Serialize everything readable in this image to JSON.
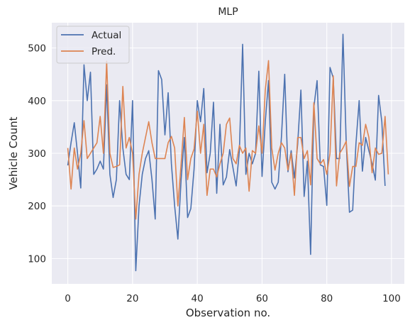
{
  "chart_data": {
    "type": "line",
    "title": "MLP",
    "xlabel": "Observation no.",
    "ylabel": "Vehicle Count",
    "xlim": [
      -4.95,
      103.95
    ],
    "ylim": [
      52,
      548
    ],
    "xticks": [
      0,
      20,
      40,
      60,
      80,
      100
    ],
    "yticks": [
      100,
      200,
      300,
      400,
      500
    ],
    "grid": true,
    "legend_position": "top-left",
    "x": [
      0,
      1,
      2,
      3,
      4,
      5,
      6,
      7,
      8,
      9,
      10,
      11,
      12,
      13,
      14,
      15,
      16,
      17,
      18,
      19,
      20,
      21,
      22,
      23,
      24,
      25,
      26,
      27,
      28,
      29,
      30,
      31,
      32,
      33,
      34,
      35,
      36,
      37,
      38,
      39,
      40,
      41,
      42,
      43,
      44,
      45,
      46,
      47,
      48,
      49,
      50,
      51,
      52,
      53,
      54,
      55,
      56,
      57,
      58,
      59,
      60,
      61,
      62,
      63,
      64,
      65,
      66,
      67,
      68,
      69,
      70,
      71,
      72,
      73,
      74,
      75,
      76,
      77,
      78,
      79,
      80,
      81,
      82,
      83,
      84,
      85,
      86,
      87,
      88,
      89,
      90,
      91,
      92,
      93,
      94,
      95,
      96,
      97,
      98,
      99
    ],
    "series": [
      {
        "name": "Actual",
        "color": "#4c72b0",
        "values": [
          277,
          320,
          358,
          300,
          234,
          468,
          400,
          454,
          260,
          270,
          285,
          270,
          430,
          260,
          216,
          250,
          400,
          310,
          260,
          250,
          400,
          77,
          200,
          260,
          290,
          305,
          250,
          175,
          457,
          440,
          335,
          415,
          280,
          200,
          137,
          250,
          330,
          178,
          195,
          270,
          400,
          360,
          423,
          263,
          300,
          397,
          224,
          355,
          240,
          255,
          307,
          273,
          238,
          305,
          507,
          260,
          300,
          280,
          300,
          456,
          256,
          360,
          438,
          245,
          232,
          245,
          332,
          450,
          265,
          305,
          253,
          317,
          420,
          218,
          285,
          108,
          387,
          438,
          278,
          275,
          201,
          463,
          443,
          290,
          290,
          526,
          320,
          188,
          192,
          318,
          400,
          266,
          330,
          305,
          280,
          249,
          410,
          360,
          238,
          null
        ]
      },
      {
        "name": "Pred.",
        "color": "#dd8452",
        "values": [
          310,
          232,
          310,
          270,
          300,
          362,
          290,
          300,
          310,
          320,
          370,
          300,
          475,
          300,
          273,
          275,
          278,
          427,
          310,
          330,
          300,
          175,
          260,
          300,
          330,
          360,
          320,
          290,
          290,
          290,
          290,
          320,
          332,
          310,
          200,
          280,
          368,
          250,
          290,
          308,
          380,
          300,
          355,
          220,
          270,
          270,
          255,
          280,
          300,
          355,
          367,
          290,
          280,
          315,
          300,
          310,
          228,
          305,
          300,
          352,
          300,
          420,
          476,
          310,
          268,
          300,
          320,
          310,
          268,
          300,
          220,
          330,
          330,
          290,
          305,
          240,
          396,
          290,
          280,
          288,
          260,
          300,
          447,
          238,
          300,
          310,
          323,
          237,
          275,
          275,
          320,
          315,
          355,
          330,
          263,
          310,
          298,
          300,
          370,
          260
        ]
      }
    ]
  }
}
